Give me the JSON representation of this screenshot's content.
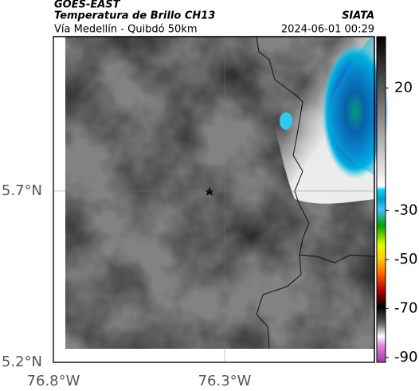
{
  "header": {
    "source": "GOES-EAST",
    "product": "Temperatura de Brillo CH13",
    "route": "Vía Medellín - Quibdó 50km",
    "agency": "SIATA",
    "datetime": "2024-06-01 00:29"
  },
  "map": {
    "xlim": [
      -76.8,
      -75.863
    ],
    "ylim": [
      5.2,
      6.151
    ],
    "xticks": [
      {
        "value": -76.8,
        "label": "76.8°W"
      },
      {
        "value": -76.3,
        "label": "76.3°W"
      }
    ],
    "yticks": [
      {
        "value": 5.2,
        "label": "5.2°N"
      },
      {
        "value": 5.7,
        "label": "5.7°N"
      }
    ]
  },
  "colorbar": {
    "lim": [
      -92,
      41
    ],
    "ticks": [
      20,
      -30,
      -50,
      -70,
      -90
    ]
  }
}
